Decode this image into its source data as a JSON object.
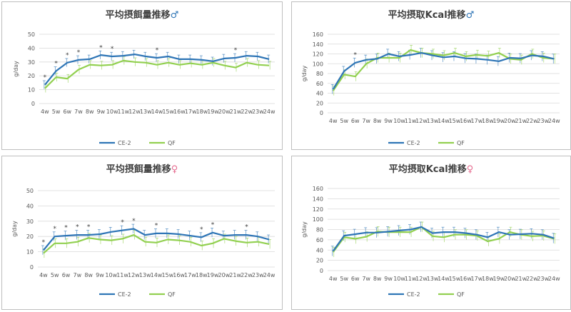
{
  "chart_data": [
    {
      "type": "line",
      "title": "平均摂餌量推移",
      "title_symbol": "♂",
      "ylabel": "g/day",
      "ylim": [
        0,
        50
      ],
      "yticks": [
        0,
        10,
        20,
        30,
        40,
        50
      ],
      "categories": [
        "4w",
        "5w",
        "6w",
        "7w",
        "8w",
        "9w",
        "10w",
        "11w",
        "12w",
        "13w",
        "14w",
        "15w",
        "16w",
        "17w",
        "18w",
        "19w",
        "20w",
        "21w",
        "22w",
        "23w",
        "24w"
      ],
      "series": [
        {
          "name": "CE-2",
          "color": "#2e75b6",
          "values": [
            13.5,
            23.5,
            29.5,
            31.5,
            32,
            35,
            34,
            34.5,
            35.5,
            34,
            33,
            34,
            32,
            32,
            31.5,
            30.5,
            32.5,
            33,
            34.5,
            34,
            32
          ]
        },
        {
          "name": "QF",
          "color": "#92d050",
          "values": [
            11,
            19,
            18,
            24.5,
            28,
            27.5,
            28,
            31,
            30,
            29.5,
            28,
            29.5,
            28,
            29,
            28,
            29.5,
            27.5,
            26,
            29.5,
            28,
            27.5
          ]
        }
      ],
      "significance": [
        0,
        1,
        2,
        3,
        5,
        6,
        10,
        17
      ],
      "legend": "bottom"
    },
    {
      "type": "line",
      "title": "平均摂取Kcal推移",
      "title_symbol": "♂",
      "ylabel": "g/day",
      "ylim": [
        0,
        160
      ],
      "yticks": [
        0,
        20,
        40,
        60,
        80,
        100,
        120,
        140,
        160
      ],
      "categories": [
        "4w",
        "5w",
        "6w",
        "7w",
        "8w",
        "9w",
        "10w",
        "11w",
        "12w",
        "13w",
        "14w",
        "15w",
        "16w",
        "17w",
        "18w",
        "19w",
        "20w",
        "21w",
        "22w",
        "23w",
        "24w"
      ],
      "series": [
        {
          "name": "CE-2",
          "color": "#2e75b6",
          "values": [
            48,
            85,
            102,
            108,
            110,
            120,
            115,
            118,
            122,
            117,
            113,
            115,
            111,
            110,
            108,
            105,
            112,
            111,
            117,
            115,
            110
          ]
        },
        {
          "name": "QF",
          "color": "#92d050",
          "values": [
            45,
            78,
            74,
            100,
            112,
            112,
            112,
            128,
            122,
            120,
            117,
            122,
            115,
            118,
            116,
            122,
            110,
            108,
            120,
            112,
            110
          ]
        }
      ],
      "significance": [
        2
      ],
      "legend": "bottom"
    },
    {
      "type": "line",
      "title": "平均摂餌量推移",
      "title_symbol": "♀",
      "ylabel": "g/day",
      "ylim": [
        0,
        50
      ],
      "yticks": [
        0,
        10,
        20,
        30,
        40,
        50
      ],
      "categories": [
        "4w",
        "5w",
        "6w",
        "7w",
        "8w",
        "9w",
        "10w",
        "11w",
        "12w",
        "13w",
        "14w",
        "15w",
        "16w",
        "17w",
        "18w",
        "19w",
        "20w",
        "21w",
        "22w",
        "23w",
        "24w"
      ],
      "series": [
        {
          "name": "CE-2",
          "color": "#2e75b6",
          "values": [
            11,
            20,
            20.5,
            21,
            21,
            21.5,
            23,
            24,
            25,
            21,
            22,
            22,
            21.5,
            20.5,
            19.5,
            22.5,
            20.5,
            21,
            21,
            20,
            18
          ]
        },
        {
          "name": "QF",
          "color": "#92d050",
          "values": [
            9,
            15.5,
            15.5,
            16.5,
            19,
            18,
            17.5,
            18.5,
            21,
            16.5,
            16,
            18,
            17.5,
            16.5,
            14,
            15.5,
            18.5,
            17,
            16,
            16.5,
            15
          ]
        }
      ],
      "significance": [
        0,
        1,
        2,
        3,
        4,
        7,
        8,
        10,
        14,
        15,
        18
      ],
      "legend": "bottom"
    },
    {
      "type": "line",
      "title": "平均摂取Kcal推移",
      "title_symbol": "♀",
      "ylabel": "g/day",
      "ylim": [
        0,
        160
      ],
      "yticks": [
        0,
        20,
        40,
        60,
        80,
        100,
        120,
        140,
        160
      ],
      "categories": [
        "4w",
        "5w",
        "6w",
        "7w",
        "8w",
        "9w",
        "10w",
        "11w",
        "12w",
        "13w",
        "14w",
        "15w",
        "16w",
        "17w",
        "18w",
        "19w",
        "20w",
        "21w",
        "22w",
        "23w",
        "24w"
      ],
      "series": [
        {
          "name": "CE-2",
          "color": "#2e75b6",
          "values": [
            38,
            68,
            71,
            74,
            74,
            76,
            78,
            80,
            85,
            73,
            75,
            75,
            73,
            70,
            65,
            75,
            70,
            71,
            72,
            70,
            63
          ]
        },
        {
          "name": "QF",
          "color": "#92d050",
          "values": [
            36,
            65,
            62,
            66,
            76,
            75,
            75,
            75,
            85,
            67,
            65,
            70,
            70,
            68,
            57,
            62,
            75,
            70,
            67,
            68,
            62
          ]
        }
      ],
      "significance": [],
      "legend": "bottom"
    }
  ]
}
